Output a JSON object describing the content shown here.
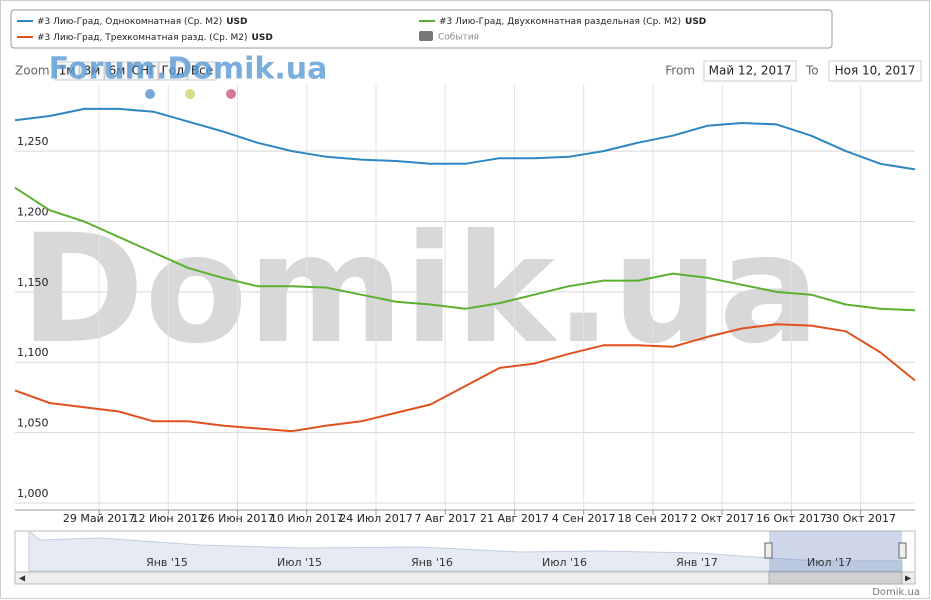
{
  "chart_data": {
    "type": "line",
    "series": [
      {
        "name": "#3 Лию-Град, Однокомнатная (Ср. М2)",
        "unit": "USD",
        "color": "#2f86c2",
        "values": [
          1272,
          1275,
          1280,
          1280,
          1278,
          1271,
          1264,
          1256,
          1250,
          1246,
          1244,
          1243,
          1241,
          1241,
          1245,
          1245,
          1246,
          1250,
          1256,
          1261,
          1268,
          1270,
          1269,
          1261,
          1250,
          1241,
          1237
        ]
      },
      {
        "name": "#3 Лию-Град, Двухкомнатная раздельная (Ср. М2)",
        "unit": "USD",
        "color": "#5ab031",
        "values": [
          1224,
          1208,
          1200,
          1189,
          1178,
          1167,
          1160,
          1154,
          1154,
          1153,
          1148,
          1143,
          1141,
          1138,
          1142,
          1148,
          1154,
          1158,
          1158,
          1163,
          1160,
          1155,
          1150,
          1148,
          1141,
          1138,
          1137
        ]
      },
      {
        "name": "#3 Лию-Град, Трехкомнатная разд. (Ср. М2)",
        "unit": "USD",
        "color": "#e0511f",
        "values": [
          1080,
          1071,
          1068,
          1065,
          1058,
          1058,
          1055,
          1053,
          1051,
          1055,
          1058,
          1064,
          1070,
          1083,
          1096,
          1099,
          1106,
          1112,
          1112,
          1111,
          1118,
          1124,
          1127,
          1126,
          1122,
          1107,
          1087
        ]
      }
    ],
    "x": [
      "2017-05-12",
      "2017-05-19",
      "2017-05-26",
      "2017-06-02",
      "2017-06-09",
      "2017-06-16",
      "2017-06-23",
      "2017-06-30",
      "2017-07-07",
      "2017-07-14",
      "2017-07-21",
      "2017-07-28",
      "2017-08-04",
      "2017-08-11",
      "2017-08-18",
      "2017-08-25",
      "2017-09-01",
      "2017-09-08",
      "2017-09-15",
      "2017-09-22",
      "2017-09-29",
      "2017-10-06",
      "2017-10-13",
      "2017-10-20",
      "2017-10-27",
      "2017-11-03",
      "2017-11-10"
    ],
    "xlim": [
      "2017-05-12",
      "2017-11-10"
    ],
    "xticks": [
      {
        "value": "2017-05-29",
        "label": "29 Май 2017"
      },
      {
        "value": "2017-06-12",
        "label": "12 Июн 2017"
      },
      {
        "value": "2017-06-26",
        "label": "26 Июн 2017"
      },
      {
        "value": "2017-07-10",
        "label": "10 Июл 2017"
      },
      {
        "value": "2017-07-24",
        "label": "24 Июл 2017"
      },
      {
        "value": "2017-08-07",
        "label": "7 Авг 2017"
      },
      {
        "value": "2017-08-21",
        "label": "21 Авг 2017"
      },
      {
        "value": "2017-09-04",
        "label": "4 Сен 2017"
      },
      {
        "value": "2017-09-18",
        "label": "18 Сен 2017"
      },
      {
        "value": "2017-10-02",
        "label": "2 Окт 2017"
      },
      {
        "value": "2017-10-16",
        "label": "16 Окт 2017"
      },
      {
        "value": "2017-10-30",
        "label": "30 Окт 2017"
      }
    ],
    "ylim": [
      995,
      1297
    ],
    "yticks": [
      {
        "value": 1000,
        "label": "1,000"
      },
      {
        "value": 1050,
        "label": "1,050"
      },
      {
        "value": 1100,
        "label": "1,100"
      },
      {
        "value": 1150,
        "label": "1,150"
      },
      {
        "value": 1200,
        "label": "1,200"
      },
      {
        "value": 1250,
        "label": "1,250"
      }
    ],
    "grid": true,
    "events_label": "События",
    "zoom_label": "Zoom",
    "zoom_buttons": [
      "1м",
      "3м",
      "6м",
      "СНГ",
      "Год",
      "Все"
    ],
    "from_label": "From",
    "from_value": "Май 12, 2017",
    "to_label": "To",
    "to_value": "Ноя 10, 2017",
    "navigator_labels": [
      "Янв '15",
      "Июл '15",
      "Янв '16",
      "Июл '16",
      "Янв '17",
      "Июл '17"
    ],
    "watermark": "Domik.ua",
    "watermark_top": "Forum.Domik.ua",
    "credit": "Domik.ua"
  }
}
